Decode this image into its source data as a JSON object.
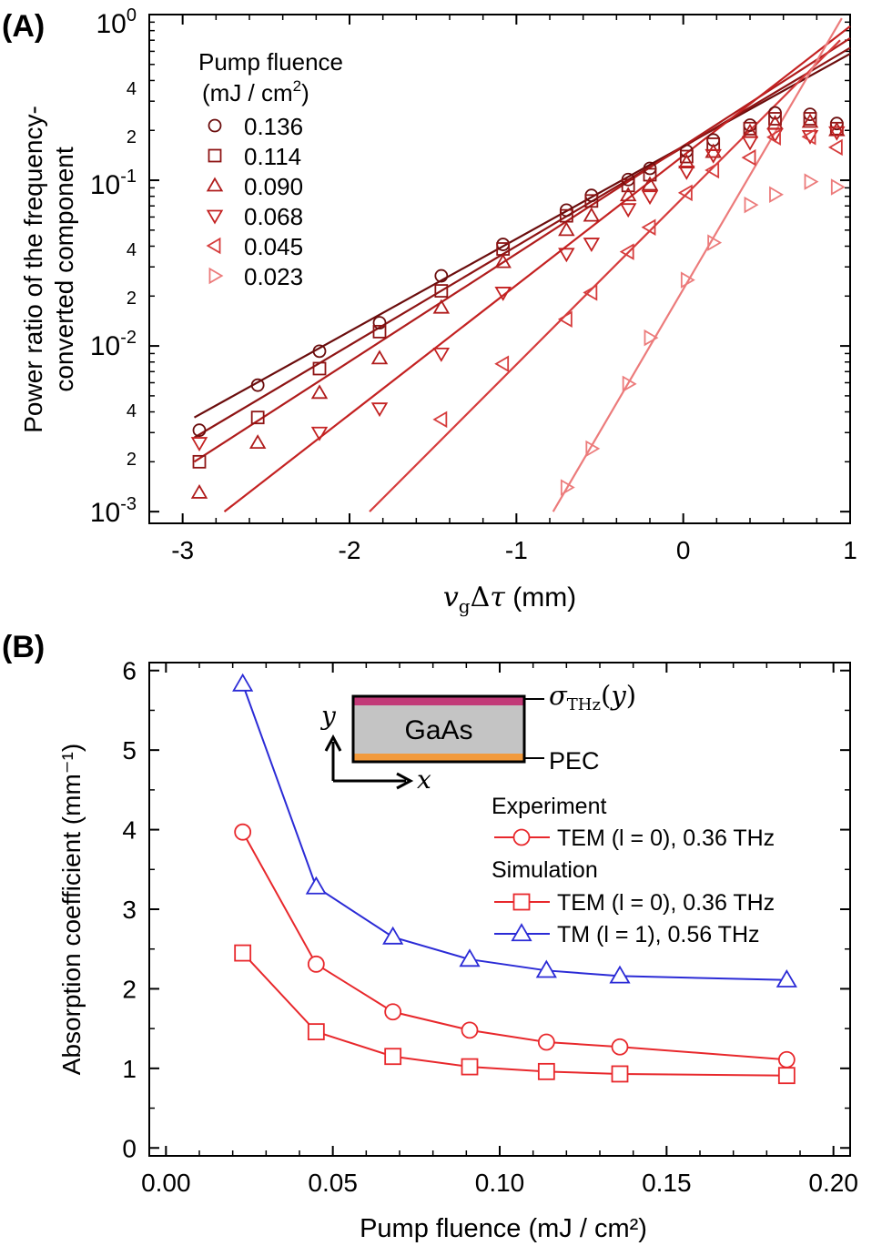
{
  "chart_data": [
    {
      "panel": "(A)",
      "type": "scatter",
      "xlabel": "v_gΔτ (mm)",
      "ylabel_line1": "Power ratio of the frequency-",
      "ylabel_line2": "converted component",
      "xscale": "linear",
      "yscale": "log",
      "xlim": [
        -3.2,
        1.0
      ],
      "ylim": [
        0.00085,
        1.0
      ],
      "xticks": [
        -3,
        -2,
        -1,
        0,
        1
      ],
      "xtick_labels": [
        "-3",
        "-2",
        "-1",
        "0",
        "1"
      ],
      "legend_title_line1": "Pump fluence",
      "legend_title_line2": "(mJ / cm²)",
      "series": [
        {
          "name": "0.136",
          "marker": "circle",
          "color": "#6b0d0d",
          "x": [
            -2.9,
            -2.55,
            -2.18,
            -1.82,
            -1.45,
            -1.08,
            -0.7,
            -0.55,
            -0.33,
            -0.2,
            0.02,
            0.18,
            0.4,
            0.55,
            0.76,
            0.92
          ],
          "y": [
            0.0031,
            0.0058,
            0.0093,
            0.0138,
            0.0265,
            0.041,
            0.066,
            0.081,
            0.101,
            0.118,
            0.15,
            0.175,
            0.215,
            0.255,
            0.25,
            0.22
          ],
          "fit_x": [
            -2.93,
            1.0
          ],
          "fit_y": [
            0.0037,
            0.58
          ]
        },
        {
          "name": "0.114",
          "marker": "square",
          "color": "#8e1414",
          "x": [
            -2.9,
            -2.55,
            -2.18,
            -1.82,
            -1.45,
            -1.08,
            -0.7,
            -0.55,
            -0.33,
            -0.2,
            0.02,
            0.18,
            0.4,
            0.55,
            0.76,
            0.92
          ],
          "y": [
            0.002,
            0.0037,
            0.0073,
            0.0122,
            0.0215,
            0.0385,
            0.061,
            0.075,
            0.093,
            0.108,
            0.139,
            0.165,
            0.205,
            0.235,
            0.235,
            0.205
          ],
          "fit_x": [
            -2.93,
            1.0
          ],
          "fit_y": [
            0.0028,
            0.63
          ]
        },
        {
          "name": "0.090",
          "marker": "triangle-up",
          "color": "#b01c1c",
          "x": [
            -2.9,
            -2.55,
            -2.18,
            -1.82,
            -1.45,
            -1.08,
            -0.7,
            -0.55,
            -0.33,
            -0.2,
            0.02,
            0.18,
            0.4,
            0.55,
            0.76,
            0.92
          ],
          "y": [
            0.0013,
            0.0026,
            0.0052,
            0.0084,
            0.017,
            0.032,
            0.05,
            0.061,
            0.081,
            0.094,
            0.128,
            0.148,
            0.195,
            0.22,
            0.225,
            0.2
          ],
          "fit_x": [
            -2.93,
            1.0
          ],
          "fit_y": [
            0.002,
            0.72
          ]
        },
        {
          "name": "0.068",
          "marker": "triangle-down",
          "color": "#c42222",
          "x": [
            -2.9,
            -2.18,
            -1.82,
            -1.45,
            -1.08,
            -0.7,
            -0.55,
            -0.33,
            -0.2,
            0.02,
            0.18,
            0.4,
            0.55,
            0.76,
            0.92
          ],
          "y": [
            0.0026,
            0.003,
            0.0042,
            0.009,
            0.021,
            0.036,
            0.0415,
            0.067,
            0.08,
            0.113,
            0.142,
            0.17,
            0.19,
            0.185,
            0.195
          ],
          "fit_x": [
            -2.75,
            1.0
          ],
          "fit_y": [
            0.001,
            0.85
          ]
        },
        {
          "name": "0.045",
          "marker": "triangle-left",
          "color": "#d63c3c",
          "x": [
            -1.45,
            -1.08,
            -0.7,
            -0.55,
            -0.33,
            -0.2,
            0.02,
            0.18,
            0.4,
            0.55,
            0.76,
            0.92
          ],
          "y": [
            0.0036,
            0.0078,
            0.0145,
            0.021,
            0.037,
            0.052,
            0.084,
            0.115,
            0.137,
            0.182,
            0.183,
            0.158
          ],
          "fit_x": [
            -1.88,
            0.94
          ],
          "fit_y": [
            0.001,
            0.7
          ]
        },
        {
          "name": "0.023",
          "marker": "triangle-right",
          "color": "#ec7b7b",
          "x": [
            -0.7,
            -0.55,
            -0.33,
            -0.2,
            0.02,
            0.18,
            0.4,
            0.55,
            0.76,
            0.92
          ],
          "y": [
            0.0014,
            0.0024,
            0.0059,
            0.0112,
            0.025,
            0.042,
            0.071,
            0.082,
            0.098,
            0.091
          ],
          "fit_x": [
            -0.78,
            0.95
          ],
          "fit_y": [
            0.001,
            0.95
          ]
        }
      ]
    },
    {
      "panel": "(B)",
      "type": "line",
      "xlabel": "Pump fluence (mJ / cm²)",
      "ylabel": "Absorption coefficient (mm⁻¹)",
      "xlim": [
        -0.005,
        0.205
      ],
      "ylim": [
        -0.1,
        6.1
      ],
      "xticks": [
        0.0,
        0.05,
        0.1,
        0.15,
        0.2
      ],
      "xtick_labels": [
        "0.00",
        "0.05",
        "0.10",
        "0.15",
        "0.20"
      ],
      "yticks": [
        0,
        1,
        2,
        3,
        4,
        5,
        6
      ],
      "ytick_labels": [
        "0",
        "1",
        "2",
        "3",
        "4",
        "5",
        "6"
      ],
      "legend_group_experiment": "Experiment",
      "legend_group_simulation": "Simulation",
      "series": [
        {
          "name": "TEM (l = 0), 0.36 THz",
          "group": "Experiment",
          "marker": "circle",
          "color": "#e8282c",
          "x": [
            0.023,
            0.045,
            0.068,
            0.091,
            0.114,
            0.136,
            0.186
          ],
          "y": [
            3.97,
            2.31,
            1.71,
            1.48,
            1.33,
            1.27,
            1.11
          ]
        },
        {
          "name": "TEM (l = 0), 0.36 THz",
          "group": "Simulation",
          "marker": "square",
          "color": "#e8282c",
          "x": [
            0.023,
            0.045,
            0.068,
            0.091,
            0.114,
            0.136,
            0.186
          ],
          "y": [
            2.45,
            1.46,
            1.15,
            1.02,
            0.96,
            0.93,
            0.91
          ]
        },
        {
          "name": "TM (l = 1), 0.56 THz",
          "group": "Simulation",
          "marker": "triangle-up",
          "color": "#2b2bd6",
          "x": [
            0.023,
            0.045,
            0.068,
            0.091,
            0.114,
            0.136,
            0.186
          ],
          "y": [
            5.83,
            3.28,
            2.65,
            2.37,
            2.23,
            2.16,
            2.11
          ]
        }
      ],
      "inset": {
        "material": "GaAs",
        "top_label": "σ_THz(y)",
        "bottom_label": "PEC",
        "axis_y": "y",
        "axis_x": "x"
      }
    }
  ]
}
